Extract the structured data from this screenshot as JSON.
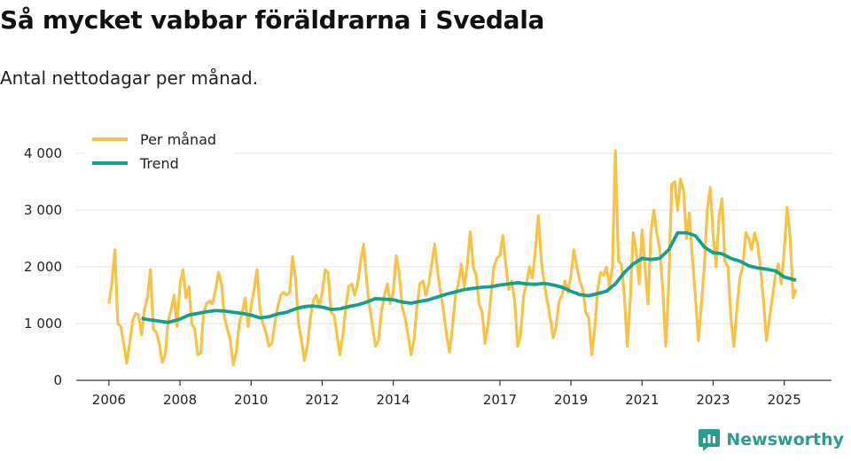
{
  "chart_data": {
    "type": "line",
    "title": "Så mycket vabbar föräldrarna i Svedala",
    "subtitle": "Antal nettodagar per månad.",
    "ylim": [
      0,
      4000
    ],
    "y_ticks": [
      0,
      1000,
      2000,
      3000,
      4000
    ],
    "y_tick_labels": [
      "0",
      "1 000",
      "2 000",
      "3 000",
      "4 000"
    ],
    "x_ticks": [
      2006,
      2008,
      2010,
      2012,
      2014,
      2017,
      2019,
      2021,
      2023,
      2025
    ],
    "legend": [
      "Per månad",
      "Trend"
    ],
    "legend_position": "top-left",
    "colors": {
      "monthly": "#F9C244",
      "trend": "#14A08E",
      "axis": "#333333",
      "grid": "#e6e6e6"
    },
    "series": [
      {
        "name": "Per månad",
        "x": [
          2006.0,
          2006.083,
          2006.167,
          2006.25,
          2006.333,
          2006.417,
          2006.5,
          2006.583,
          2006.667,
          2006.75,
          2006.833,
          2006.917,
          2007.0,
          2007.083,
          2007.167,
          2007.25,
          2007.333,
          2007.417,
          2007.5,
          2007.583,
          2007.667,
          2007.75,
          2007.833,
          2007.917,
          2008.0,
          2008.083,
          2008.167,
          2008.25,
          2008.333,
          2008.417,
          2008.5,
          2008.583,
          2008.667,
          2008.75,
          2008.833,
          2008.917,
          2009.0,
          2009.083,
          2009.167,
          2009.25,
          2009.333,
          2009.417,
          2009.5,
          2009.583,
          2009.667,
          2009.75,
          2009.833,
          2009.917,
          2010.0,
          2010.083,
          2010.167,
          2010.25,
          2010.333,
          2010.417,
          2010.5,
          2010.583,
          2010.667,
          2010.75,
          2010.833,
          2010.917,
          2011.0,
          2011.083,
          2011.167,
          2011.25,
          2011.333,
          2011.417,
          2011.5,
          2011.583,
          2011.667,
          2011.75,
          2011.833,
          2011.917,
          2012.0,
          2012.083,
          2012.167,
          2012.25,
          2012.333,
          2012.417,
          2012.5,
          2012.583,
          2012.667,
          2012.75,
          2012.833,
          2012.917,
          2013.0,
          2013.083,
          2013.167,
          2013.25,
          2013.333,
          2013.417,
          2013.5,
          2013.583,
          2013.667,
          2013.75,
          2013.833,
          2013.917,
          2014.0,
          2014.083,
          2014.167,
          2014.25,
          2014.333,
          2014.417,
          2014.5,
          2014.583,
          2014.667,
          2014.75,
          2014.833,
          2014.917,
          2015.0,
          2015.083,
          2015.167,
          2015.25,
          2015.333,
          2015.417,
          2015.5,
          2015.583,
          2015.667,
          2015.75,
          2015.833,
          2015.917,
          2016.0,
          2016.083,
          2016.167,
          2016.25,
          2016.333,
          2016.417,
          2016.5,
          2016.583,
          2016.667,
          2016.75,
          2016.833,
          2016.917,
          2017.0,
          2017.083,
          2017.167,
          2017.25,
          2017.333,
          2017.417,
          2017.5,
          2017.583,
          2017.667,
          2017.75,
          2017.833,
          2017.917,
          2018.0,
          2018.083,
          2018.167,
          2018.25,
          2018.333,
          2018.417,
          2018.5,
          2018.583,
          2018.667,
          2018.75,
          2018.833,
          2018.917,
          2019.0,
          2019.083,
          2019.167,
          2019.25,
          2019.333,
          2019.417,
          2019.5,
          2019.583,
          2019.667,
          2019.75,
          2019.833,
          2019.917,
          2020.0,
          2020.083,
          2020.167,
          2020.25,
          2020.333,
          2020.417,
          2020.5,
          2020.583,
          2020.667,
          2020.75,
          2020.833,
          2020.917,
          2021.0,
          2021.083,
          2021.167,
          2021.25,
          2021.333,
          2021.417,
          2021.5,
          2021.583,
          2021.667,
          2021.75,
          2021.833,
          2021.917,
          2022.0,
          2022.083,
          2022.167,
          2022.25,
          2022.333,
          2022.417,
          2022.5,
          2022.583,
          2022.667,
          2022.75,
          2022.833,
          2022.917,
          2023.0,
          2023.083,
          2023.167,
          2023.25,
          2023.333,
          2023.417,
          2023.5,
          2023.583,
          2023.667,
          2023.75,
          2023.833,
          2023.917,
          2024.0,
          2024.083,
          2024.167,
          2024.25,
          2024.333,
          2024.417,
          2024.5,
          2024.583,
          2024.667,
          2024.75,
          2024.833,
          2024.917,
          2025.0,
          2025.083,
          2025.167,
          2025.25,
          2025.333
        ],
        "values": [
          1350,
          1700,
          2300,
          1000,
          950,
          650,
          300,
          650,
          1050,
          1180,
          1150,
          800,
          1250,
          1450,
          1950,
          900,
          850,
          650,
          320,
          450,
          1050,
          1250,
          1500,
          950,
          1700,
          1950,
          1450,
          1650,
          1000,
          900,
          450,
          480,
          1200,
          1350,
          1400,
          1350,
          1600,
          1900,
          1700,
          1100,
          900,
          700,
          270,
          500,
          1000,
          1200,
          1450,
          950,
          1300,
          1600,
          1950,
          1250,
          1000,
          850,
          600,
          650,
          1000,
          1300,
          1500,
          1550,
          1500,
          1550,
          2180,
          1800,
          1000,
          700,
          350,
          600,
          1100,
          1400,
          1500,
          1300,
          1550,
          1950,
          1900,
          1200,
          1150,
          800,
          450,
          800,
          1300,
          1650,
          1700,
          1500,
          1700,
          2100,
          2400,
          1750,
          1300,
          950,
          600,
          700,
          1200,
          1500,
          1700,
          1350,
          1550,
          2200,
          1900,
          1300,
          1100,
          800,
          450,
          700,
          1300,
          1700,
          1750,
          1500,
          1700,
          2050,
          2400,
          1900,
          1550,
          1200,
          800,
          500,
          950,
          1500,
          1700,
          2050,
          1650,
          2050,
          2620,
          2000,
          1850,
          1350,
          1200,
          650,
          1000,
          1500,
          2000,
          2150,
          2200,
          2550,
          2050,
          1600,
          1750,
          1400,
          600,
          800,
          1500,
          1700,
          2000,
          1800,
          2300,
          2900,
          2100,
          1700,
          1400,
          1100,
          750,
          950,
          1400,
          1500,
          1750,
          1550,
          1850,
          2300,
          2000,
          1750,
          1600,
          1200,
          1100,
          450,
          900,
          1600,
          1900,
          1850,
          2000,
          1650,
          2000,
          4050,
          2100,
          2050,
          1500,
          600,
          1400,
          2600,
          2300,
          1700,
          2650,
          2000,
          1350,
          2600,
          3000,
          2600,
          2300,
          1600,
          600,
          1700,
          3450,
          3500,
          3000,
          3550,
          3350,
          2500,
          2950,
          2150,
          1500,
          700,
          1300,
          2000,
          3000,
          3400,
          2550,
          2000,
          2900,
          3200,
          2100,
          2000,
          1100,
          600,
          1250,
          1800,
          2000,
          2600,
          2500,
          2300,
          2600,
          2400,
          2000,
          1400,
          700,
          1100,
          1450,
          1850,
          2050,
          1700,
          2300,
          3050,
          2500,
          1450,
          1600
        ]
      },
      {
        "name": "Trend",
        "x": [
          2006.917,
          2007.0,
          2007.333,
          2007.667,
          2008.0,
          2008.25,
          2008.5,
          2008.75,
          2009.0,
          2009.25,
          2009.5,
          2009.75,
          2010.0,
          2010.25,
          2010.5,
          2010.75,
          2011.0,
          2011.25,
          2011.5,
          2011.75,
          2012.0,
          2012.25,
          2012.5,
          2012.75,
          2013.0,
          2013.25,
          2013.5,
          2013.75,
          2014.0,
          2014.25,
          2014.5,
          2014.75,
          2015.0,
          2015.25,
          2015.5,
          2015.75,
          2016.0,
          2016.25,
          2016.5,
          2016.75,
          2017.0,
          2017.25,
          2017.5,
          2017.75,
          2018.0,
          2018.25,
          2018.5,
          2018.75,
          2019.0,
          2019.25,
          2019.5,
          2019.75,
          2020.0,
          2020.25,
          2020.5,
          2020.75,
          2021.0,
          2021.25,
          2021.5,
          2021.75,
          2022.0,
          2022.25,
          2022.5,
          2022.75,
          2023.0,
          2023.25,
          2023.5,
          2023.75,
          2024.0,
          2024.25,
          2024.5,
          2024.75,
          2025.0,
          2025.25,
          2025.333
        ],
        "values": [
          1100,
          1080,
          1050,
          1020,
          1080,
          1150,
          1180,
          1210,
          1230,
          1220,
          1200,
          1180,
          1150,
          1100,
          1120,
          1170,
          1200,
          1260,
          1300,
          1310,
          1290,
          1250,
          1260,
          1300,
          1330,
          1380,
          1440,
          1430,
          1420,
          1380,
          1360,
          1390,
          1420,
          1470,
          1520,
          1560,
          1600,
          1620,
          1640,
          1650,
          1680,
          1700,
          1720,
          1700,
          1690,
          1710,
          1680,
          1640,
          1570,
          1510,
          1490,
          1530,
          1570,
          1700,
          1900,
          2050,
          2150,
          2130,
          2150,
          2300,
          2600,
          2600,
          2550,
          2350,
          2250,
          2230,
          2150,
          2100,
          2020,
          1980,
          1960,
          1930,
          1820,
          1780,
          1760
        ]
      }
    ]
  },
  "brand": {
    "name": "Newsworthy"
  }
}
